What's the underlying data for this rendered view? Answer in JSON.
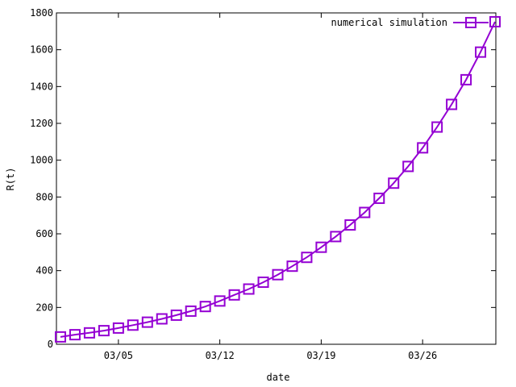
{
  "chart_data": {
    "type": "line",
    "title": "",
    "xlabel": "date",
    "ylabel": "R(t)",
    "ylim": [
      0,
      1800
    ],
    "yticks": [
      0,
      200,
      400,
      600,
      800,
      1000,
      1200,
      1400,
      1600,
      1800
    ],
    "xticks": [
      "03/05",
      "03/12",
      "03/19",
      "03/26"
    ],
    "xlim": [
      "03/01",
      "03/31"
    ],
    "legend_position": "top-right",
    "grid": false,
    "series": [
      {
        "name": "numerical simulation",
        "color": "#9400d3",
        "marker": "square",
        "x": [
          "03/01",
          "03/02",
          "03/03",
          "03/04",
          "03/05",
          "03/06",
          "03/07",
          "03/08",
          "03/09",
          "03/10",
          "03/11",
          "03/12",
          "03/13",
          "03/14",
          "03/15",
          "03/16",
          "03/17",
          "03/18",
          "03/19",
          "03/20",
          "03/21",
          "03/22",
          "03/23",
          "03/24",
          "03/25",
          "03/26",
          "03/27",
          "03/28",
          "03/29",
          "03/30",
          "03/31"
        ],
        "values": [
          40,
          52,
          62,
          74,
          88,
          104,
          120,
          138,
          158,
          180,
          205,
          235,
          268,
          300,
          337,
          378,
          424,
          472,
          527,
          585,
          648,
          716,
          793,
          875,
          966,
          1067,
          1180,
          1303,
          1437,
          1587,
          1752
        ]
      }
    ]
  }
}
